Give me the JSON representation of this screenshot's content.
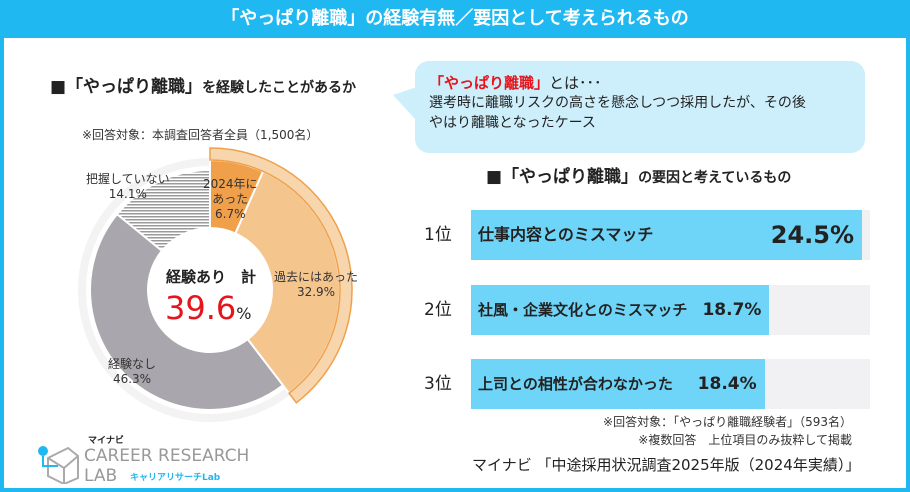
{
  "title": "「やっぱり離職」の経験有無／要因として考えられるもの",
  "left": {
    "heading_prefix": "■「やっぱり離職」",
    "heading_suffix": "を経験したことがあるか",
    "note": "※回答対象：本調査回答者全員（1,500名）",
    "center_label": "経験あり　計",
    "center_value": "39.6",
    "center_unit": "%"
  },
  "definition": {
    "term": "「やっぱり離職」",
    "term_suffix": "とは･･･",
    "line1": "選考時に離職リスクの高さを懸念しつつ採用したが、その後",
    "line2": "やはり離職となったケース"
  },
  "right": {
    "heading_prefix": "■「やっぱり離職」",
    "heading_suffix": "の要因と考えているもの",
    "note1": "※回答対象：「やっぱり離職経験者」（593名）",
    "note2": "※複数回答　上位項目のみ抜粋して掲載"
  },
  "source": "マイナビ 「中途採用状況調査2025年版（2024年実績）」",
  "logo": {
    "brand": "マイナビ",
    "name1": "CAREER RESEARCH",
    "name2": "LAB",
    "sub": "キャリアリサーチLab"
  },
  "colors": {
    "accent": "#1fb8f0",
    "red": "#e8141b",
    "orange_dark": "#f0a04a",
    "orange_light": "#f5c58e",
    "gray": "#aaa6ad",
    "bar": "#6fd5f8"
  },
  "chart_data": [
    {
      "type": "pie",
      "donut": true,
      "slices": [
        {
          "label_line1": "2024年に",
          "label_line2": "あった",
          "value_text": "6.7%",
          "value": 6.7,
          "color": "#f0a04a"
        },
        {
          "label_line1": "過去にはあった",
          "value_text": "32.9%",
          "value": 32.9,
          "color": "#f5c58e"
        },
        {
          "label_line1": "経験なし",
          "value_text": "46.3%",
          "value": 46.3,
          "color": "#aaa6ad"
        },
        {
          "label_line1": "把握していない",
          "value_text": "14.1%",
          "value": 14.1,
          "color": "hatched"
        }
      ]
    },
    {
      "type": "bar",
      "orientation": "horizontal",
      "xlim": [
        0,
        25
      ],
      "items": [
        {
          "rank": "1位",
          "label": "仕事内容とのミスマッチ",
          "value": 24.5,
          "value_text": "24.5%"
        },
        {
          "rank": "2位",
          "label": "社風・企業文化とのミスマッチ",
          "value": 18.7,
          "value_text": "18.7%"
        },
        {
          "rank": "3位",
          "label": "上司との相性が合わなかった",
          "value": 18.4,
          "value_text": "18.4%"
        }
      ]
    }
  ]
}
